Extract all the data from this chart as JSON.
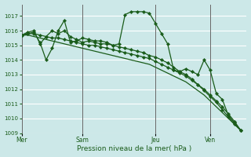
{
  "title": "Pression niveau de la mer( hPa )",
  "bg_color": "#cce8e8",
  "grid_color": "#ffffff",
  "line_color": "#1a5c1a",
  "vline_color": "#666666",
  "ylim": [
    1009,
    1017.8
  ],
  "yticks": [
    1009,
    1010,
    1011,
    1012,
    1013,
    1014,
    1015,
    1016,
    1017
  ],
  "day_labels": [
    "Mer",
    "Sam",
    "Jeu",
    "Ven"
  ],
  "day_positions": [
    0,
    10,
    22,
    31
  ],
  "xlim": [
    0,
    37
  ],
  "series1_x": [
    0,
    1,
    2,
    3,
    4,
    5,
    6,
    7,
    8,
    9,
    10,
    11,
    12,
    13,
    14,
    15,
    16,
    17,
    18,
    19,
    20,
    21,
    22,
    23,
    24,
    25,
    26,
    27,
    28,
    29,
    30,
    31,
    32,
    33,
    34,
    35,
    36
  ],
  "series1_y": [
    1015.7,
    1015.7,
    1015.6,
    1015.5,
    1015.4,
    1015.3,
    1015.2,
    1015.1,
    1015.0,
    1014.9,
    1014.8,
    1014.7,
    1014.6,
    1014.5,
    1014.4,
    1014.3,
    1014.2,
    1014.1,
    1014.0,
    1013.9,
    1013.8,
    1013.7,
    1013.5,
    1013.3,
    1013.1,
    1012.9,
    1012.7,
    1012.5,
    1012.2,
    1011.9,
    1011.6,
    1011.2,
    1010.8,
    1010.4,
    1010.0,
    1009.6,
    1009.2
  ],
  "series2_x": [
    0,
    1,
    2,
    3,
    4,
    5,
    6,
    7,
    8,
    9,
    10,
    11,
    12,
    13,
    14,
    15,
    16,
    17,
    18,
    19,
    20,
    21,
    22,
    23,
    24,
    25,
    26,
    27,
    28,
    29,
    30,
    31,
    32,
    33,
    34,
    35,
    36
  ],
  "series2_y": [
    1015.7,
    1015.8,
    1015.9,
    1015.2,
    1014.0,
    1014.8,
    1016.0,
    1016.7,
    1015.2,
    1015.3,
    1015.5,
    1015.4,
    1015.3,
    1015.3,
    1015.2,
    1015.0,
    1015.1,
    1017.1,
    1017.3,
    1017.3,
    1017.3,
    1017.2,
    1016.5,
    1015.8,
    1015.1,
    1013.3,
    1013.2,
    1013.4,
    1013.2,
    1013.0,
    1014.0,
    1013.3,
    1011.7,
    1011.3,
    1010.2,
    1009.7,
    1009.2
  ],
  "series3_x": [
    0,
    1,
    2,
    3,
    4,
    5,
    6,
    7,
    8,
    9,
    10,
    11,
    12,
    13,
    14,
    15,
    16,
    17,
    18,
    19,
    20,
    21,
    22,
    23,
    24,
    25,
    26,
    27,
    28,
    29,
    30,
    31,
    32,
    33,
    34,
    35,
    36
  ],
  "series3_y": [
    1015.7,
    1015.8,
    1015.8,
    1015.7,
    1015.6,
    1015.5,
    1015.5,
    1015.4,
    1015.3,
    1015.2,
    1015.1,
    1015.0,
    1015.0,
    1014.9,
    1014.8,
    1014.7,
    1014.6,
    1014.5,
    1014.4,
    1014.3,
    1014.2,
    1014.1,
    1013.9,
    1013.7,
    1013.5,
    1013.3,
    1013.1,
    1012.9,
    1012.6,
    1012.3,
    1012.0,
    1011.6,
    1011.2,
    1010.8,
    1010.3,
    1009.8,
    1009.2
  ],
  "series4_x": [
    0,
    1,
    2,
    3,
    4,
    5,
    6,
    7,
    8,
    9,
    10,
    11,
    12,
    13,
    14,
    15,
    16,
    17,
    18,
    19,
    20,
    21,
    22,
    23,
    24,
    25,
    26,
    27,
    28,
    29,
    30,
    31,
    32,
    33,
    34,
    35,
    36
  ],
  "series4_y": [
    1015.7,
    1015.9,
    1016.0,
    1015.1,
    1015.6,
    1016.0,
    1015.8,
    1016.0,
    1015.6,
    1015.4,
    1015.2,
    1015.3,
    1015.2,
    1015.1,
    1015.1,
    1015.0,
    1014.9,
    1014.8,
    1014.7,
    1014.6,
    1014.5,
    1014.3,
    1014.2,
    1014.0,
    1013.8,
    1013.5,
    1013.2,
    1013.0,
    1012.7,
    1012.3,
    1011.9,
    1011.5,
    1011.1,
    1010.6,
    1010.1,
    1009.6,
    1009.2
  ]
}
